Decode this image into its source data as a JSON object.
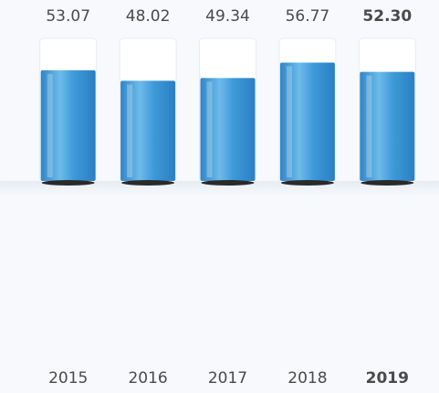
{
  "chart_data": {
    "type": "bar",
    "categories": [
      "2015",
      "2016",
      "2017",
      "2018",
      "2019"
    ],
    "values": [
      53.07,
      48.02,
      49.34,
      56.77,
      52.3
    ],
    "value_labels": [
      "53.07",
      "48.02",
      "49.34",
      "56.77",
      "52.30"
    ],
    "color": "#4a9fdc",
    "highlight": "2019",
    "highlight_color": "#1d5b86"
  }
}
